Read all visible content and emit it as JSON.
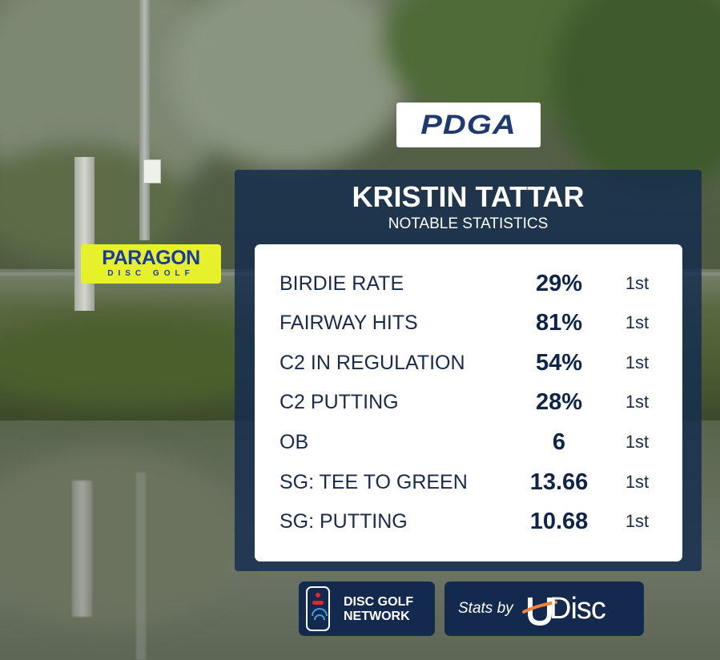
{
  "logos": {
    "pdga": "PDGA",
    "paragon_main": "PARAGON",
    "paragon_sub": "DISC GOLF",
    "dgn_line1": "DISC GOLF",
    "dgn_line2": "NETWORK",
    "stats_by": "Stats by",
    "udisc_name": "Disc"
  },
  "header": {
    "player": "KRISTIN TATTAR",
    "subtitle": "NOTABLE STATISTICS"
  },
  "stats": [
    {
      "label": "BIRDIE RATE",
      "value": "29%",
      "rank": "1st"
    },
    {
      "label": "FAIRWAY HITS",
      "value": "81%",
      "rank": "1st"
    },
    {
      "label": "C2 IN REGULATION",
      "value": "54%",
      "rank": "1st"
    },
    {
      "label": "C2 PUTTING",
      "value": "28%",
      "rank": "1st"
    },
    {
      "label": "OB",
      "value": "6",
      "rank": "1st"
    },
    {
      "label": "SG: TEE TO GREEN",
      "value": "13.66",
      "rank": "1st"
    },
    {
      "label": "SG: PUTTING",
      "value": "10.68",
      "rank": "1st"
    }
  ],
  "colors": {
    "panel": "#142c4e",
    "card": "#ffffff",
    "value_text": "#0f2447",
    "paragon_bg": "#e6f12c",
    "paragon_text": "#1b3aa0",
    "pdga_text": "#1e3a6e",
    "dgn_red": "#e1262e",
    "udisc_orange": "#f0823a"
  }
}
